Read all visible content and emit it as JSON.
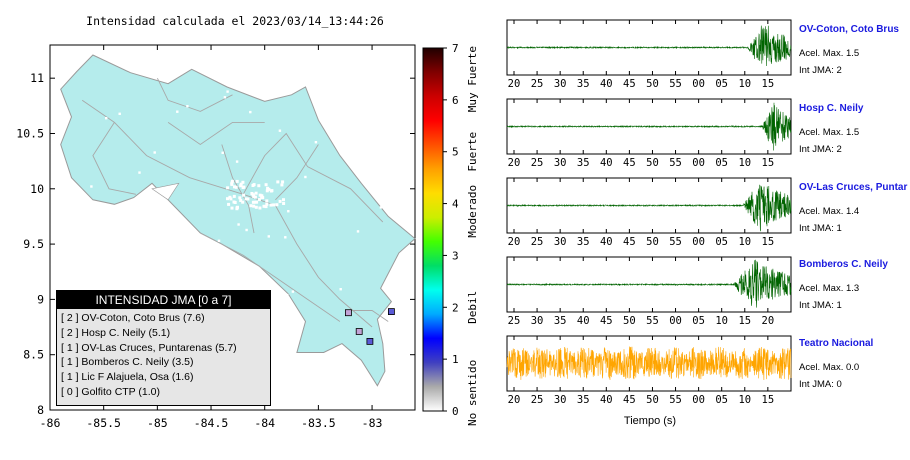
{
  "title": "Intensidad calculada el 2023/03/14_13:44:26",
  "chart_data": [
    {
      "type": "map",
      "title": "Intensidad calculada el 2023/03/14_13:44:26",
      "xlim": [
        -86,
        -82.6
      ],
      "ylim": [
        8,
        11.3
      ],
      "x_ticks": [
        "-86",
        "-85.5",
        "-85",
        "-84.5",
        "-84",
        "-83.5",
        "-83"
      ],
      "y_ticks": [
        "8",
        "8.5",
        "9",
        "9.5",
        "10",
        "10.5",
        "11"
      ],
      "land_color": "#b5ecec",
      "station_markers": [
        {
          "lon": -83.22,
          "lat": 8.88,
          "intensity": 1,
          "color": "#c2a3d6"
        },
        {
          "lon": -83.02,
          "lat": 8.62,
          "intensity": 2,
          "color": "#5a5ad6"
        },
        {
          "lon": -82.82,
          "lat": 8.89,
          "intensity": 2,
          "color": "#5a5ad6"
        },
        {
          "lon": -83.12,
          "lat": 8.71,
          "intensity": 1,
          "color": "#c2a3d6"
        }
      ],
      "legend": {
        "title": "INTENSIDAD JMA [0 a 7]",
        "placement": "bottom-left",
        "entries": [
          "[ 2 ]  OV-Coton, Coto Brus (7.6)",
          "[ 2 ]  Hosp C. Neily (5.1)",
          "[ 1 ]  OV-Las Cruces, Puntarenas (5.7)",
          "[ 1 ]  Bomberos C. Neily (3.5)",
          "[ 1 ]  Lic F Alajuela, Osa (1.6)",
          "[ 0 ]  Golfito CTP (1.0)"
        ]
      }
    },
    {
      "type": "colorbar",
      "range": [
        0,
        7
      ],
      "ticks": [
        "0",
        "1",
        "2",
        "3",
        "4",
        "5",
        "6",
        "7"
      ],
      "category_labels": [
        "No sentido",
        "Debil",
        "Moderado",
        "Fuerte",
        "Muy Fuerte"
      ],
      "colors": [
        "#ffffff",
        "#aaaaaa",
        "#4040c0",
        "#0000ff",
        "#00aaff",
        "#00ffee",
        "#00dd66",
        "#44ff00",
        "#ccee00",
        "#ffdd00",
        "#ffa000",
        "#ff5000",
        "#ff0000",
        "#cc0000",
        "#800000",
        "#200000"
      ]
    },
    {
      "type": "line",
      "xlabel": "Tiempo (s)",
      "panels": [
        {
          "name": "OV-Coton, Coto Brus",
          "acc_label": "Acel. Max. 1.5",
          "int_label": "Int JMA: 2",
          "color": "#006400",
          "onset_s": 51,
          "tick_labels": [
            "20",
            "25",
            "30",
            "35",
            "40",
            "45",
            "50",
            "55",
            "00",
            "05",
            "10",
            "15"
          ]
        },
        {
          "name": "Hosp C. Neily",
          "acc_label": "Acel. Max. 1.5",
          "int_label": "Int JMA: 2",
          "color": "#006400",
          "onset_s": 54,
          "tick_labels": [
            "20",
            "25",
            "30",
            "35",
            "40",
            "45",
            "50",
            "55",
            "00",
            "05",
            "10",
            "15"
          ]
        },
        {
          "name": "OV-Las Cruces, Puntar",
          "acc_label": "Acel. Max. 1.4",
          "int_label": "Int JMA: 1",
          "color": "#006400",
          "onset_s": 50,
          "tick_labels": [
            "20",
            "25",
            "30",
            "35",
            "40",
            "45",
            "50",
            "55",
            "00",
            "05",
            "10",
            "15"
          ]
        },
        {
          "name": "Bomberos C. Neily",
          "acc_label": "Acel. Max. 1.3",
          "int_label": "Int JMA: 1",
          "color": "#006400",
          "onset_s": 48,
          "tick_labels": [
            "25",
            "30",
            "35",
            "40",
            "45",
            "50",
            "55",
            "00",
            "05",
            "10",
            "15",
            "20"
          ]
        },
        {
          "name": "Teatro Nacional",
          "acc_label": "Acel. Max. 0.0",
          "int_label": "Int JMA: 0",
          "color": "#ffa500",
          "onset_s": 0,
          "tick_labels": [
            "20",
            "25",
            "30",
            "35",
            "40",
            "45",
            "50",
            "55",
            "00",
            "05",
            "10",
            "15"
          ]
        }
      ]
    }
  ]
}
